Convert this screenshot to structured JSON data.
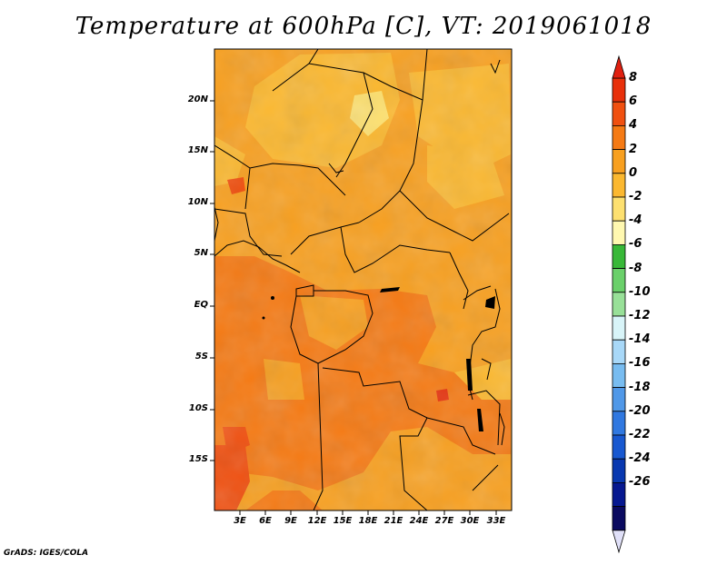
{
  "title": "Temperature at 600hPa [C], VT: 2019061018",
  "credit": "GrADS: IGES/COLA",
  "map": {
    "lat_labels": [
      "20N",
      "15N",
      "10N",
      "5N",
      "EQ",
      "5S",
      "10S",
      "15S"
    ],
    "lon_labels": [
      "3E",
      "6E",
      "9E",
      "12E",
      "15E",
      "18E",
      "21E",
      "24E",
      "27E",
      "30E",
      "33E"
    ]
  },
  "colorbar": {
    "levels": [
      "8",
      "6",
      "4",
      "2",
      "0",
      "-2",
      "-4",
      "-6",
      "-8",
      "-10",
      "-12",
      "-14",
      "-16",
      "-18",
      "-20",
      "-22",
      "-24",
      "-26"
    ],
    "colors": [
      "#e8300a",
      "#f05010",
      "#f57a14",
      "#f8a020",
      "#fbb830",
      "#fde070",
      "#fff8b0",
      "#38b838",
      "#6ad06a",
      "#98e098",
      "#d8f4f8",
      "#a8d8f8",
      "#78bcf0",
      "#5098e8",
      "#3078e0",
      "#1858d0",
      "#0838b0",
      "#061890",
      "#0a0a60"
    ],
    "end_colors": {
      "top": "#e02010",
      "bottom": "#e0e0f8"
    }
  }
}
